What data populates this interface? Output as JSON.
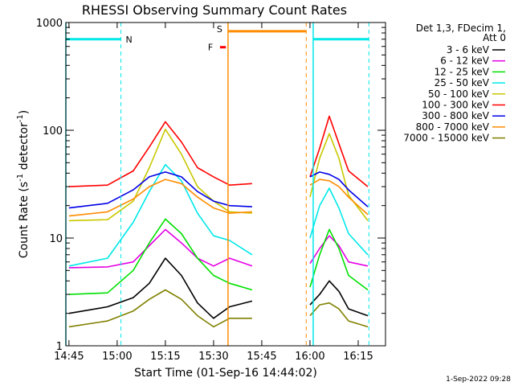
{
  "chart_data": {
    "type": "line",
    "title": "RHESSI Observing Summary Count Rates",
    "xlabel": "Start Time (01-Sep-16 14:44:02)",
    "ylabel_main": "Count Rate (s",
    "ylabel_sup1": "-1",
    "ylabel_mid": " detector",
    "ylabel_sup2": "-1",
    "ylabel_end": ")",
    "timestamp": "1-Sep-2022 09:28",
    "y_scale": "log",
    "ylim": [
      1,
      1000
    ],
    "xlim": [
      "14:44:02",
      "16:23:30"
    ],
    "x_ticks": [
      "14:45",
      "15:00",
      "15:15",
      "15:30",
      "15:45",
      "16:00",
      "16:15"
    ],
    "y_ticks": [
      "1",
      "10",
      "100",
      "1000"
    ],
    "legend": {
      "position": "top-right",
      "header1": "Det 1,3, FDecim 1,",
      "header2": "Att 0"
    },
    "series": [
      {
        "name": "3 - 6 keV",
        "color": "#000000",
        "seg1": [
          [
            "14:45",
            2
          ],
          [
            "14:57",
            2.3
          ],
          [
            "15:05",
            2.8
          ],
          [
            "15:10",
            3.8
          ],
          [
            "15:15",
            6.5
          ],
          [
            "15:20",
            4.5
          ],
          [
            "15:25",
            2.5
          ],
          [
            "15:30",
            1.8
          ],
          [
            "15:35",
            2.3
          ],
          [
            "15:42",
            2.6
          ]
        ],
        "seg2": [
          [
            "16:00",
            2.4
          ],
          [
            "16:03",
            3
          ],
          [
            "16:06",
            4
          ],
          [
            "16:09",
            3.2
          ],
          [
            "16:12",
            2.2
          ],
          [
            "16:18",
            1.9
          ]
        ]
      },
      {
        "name": "6 - 12 keV",
        "color": "#e400e4",
        "seg1": [
          [
            "14:45",
            5.3
          ],
          [
            "14:57",
            5.4
          ],
          [
            "15:05",
            6
          ],
          [
            "15:10",
            8.5
          ],
          [
            "15:15",
            12
          ],
          [
            "15:20",
            9
          ],
          [
            "15:25",
            6.5
          ],
          [
            "15:30",
            5.5
          ],
          [
            "15:35",
            6.5
          ],
          [
            "15:42",
            5.5
          ]
        ],
        "seg2": [
          [
            "16:00",
            5.8
          ],
          [
            "16:03",
            8
          ],
          [
            "16:06",
            10.5
          ],
          [
            "16:09",
            8.5
          ],
          [
            "16:12",
            6
          ],
          [
            "16:18",
            5.5
          ]
        ]
      },
      {
        "name": "12 - 25 keV",
        "color": "#00e000",
        "seg1": [
          [
            "14:45",
            3
          ],
          [
            "14:57",
            3.1
          ],
          [
            "15:05",
            5
          ],
          [
            "15:10",
            9
          ],
          [
            "15:15",
            15
          ],
          [
            "15:20",
            11
          ],
          [
            "15:25",
            6.5
          ],
          [
            "15:30",
            4.5
          ],
          [
            "15:35",
            3.8
          ],
          [
            "15:42",
            3.3
          ]
        ],
        "seg2": [
          [
            "16:00",
            3.5
          ],
          [
            "16:03",
            7
          ],
          [
            "16:06",
            12
          ],
          [
            "16:09",
            8
          ],
          [
            "16:12",
            4.5
          ],
          [
            "16:18",
            3.3
          ]
        ]
      },
      {
        "name": "25 - 50 keV",
        "color": "#00e8e8",
        "seg1": [
          [
            "14:45",
            5.5
          ],
          [
            "14:57",
            6.5
          ],
          [
            "15:05",
            14
          ],
          [
            "15:10",
            27
          ],
          [
            "15:15",
            48
          ],
          [
            "15:20",
            34
          ],
          [
            "15:25",
            17
          ],
          [
            "15:30",
            10.5
          ],
          [
            "15:35",
            9.5
          ],
          [
            "15:42",
            7
          ]
        ],
        "seg2": [
          [
            "16:00",
            10
          ],
          [
            "16:03",
            20
          ],
          [
            "16:06",
            29
          ],
          [
            "16:09",
            19
          ],
          [
            "16:12",
            11
          ],
          [
            "16:18",
            7
          ]
        ]
      },
      {
        "name": "50 - 100 keV",
        "color": "#c8c800",
        "seg1": [
          [
            "14:45",
            14.5
          ],
          [
            "14:57",
            14.8
          ],
          [
            "15:05",
            22
          ],
          [
            "15:10",
            45
          ],
          [
            "15:15",
            102
          ],
          [
            "15:20",
            60
          ],
          [
            "15:25",
            30
          ],
          [
            "15:30",
            22
          ],
          [
            "15:35",
            17.5
          ],
          [
            "15:42",
            17
          ]
        ],
        "seg2": [
          [
            "16:00",
            24
          ],
          [
            "16:03",
            55
          ],
          [
            "16:06",
            93
          ],
          [
            "16:09",
            55
          ],
          [
            "16:12",
            25
          ],
          [
            "16:18",
            14.5
          ]
        ]
      },
      {
        "name": "100 - 300 keV",
        "color": "#ff0000",
        "seg1": [
          [
            "14:45",
            30
          ],
          [
            "14:57",
            31
          ],
          [
            "15:05",
            42
          ],
          [
            "15:10",
            70
          ],
          [
            "15:15",
            120
          ],
          [
            "15:20",
            78
          ],
          [
            "15:25",
            45
          ],
          [
            "15:30",
            37
          ],
          [
            "15:35",
            31
          ],
          [
            "15:42",
            32
          ]
        ],
        "seg2": [
          [
            "16:00",
            37
          ],
          [
            "16:03",
            68
          ],
          [
            "16:06",
            135
          ],
          [
            "16:09",
            75
          ],
          [
            "16:12",
            42
          ],
          [
            "16:18",
            30
          ]
        ]
      },
      {
        "name": "300 - 800 keV",
        "color": "#0000e8",
        "seg1": [
          [
            "14:45",
            19
          ],
          [
            "14:57",
            21
          ],
          [
            "15:05",
            28
          ],
          [
            "15:10",
            37
          ],
          [
            "15:15",
            41
          ],
          [
            "15:20",
            37
          ],
          [
            "15:25",
            27
          ],
          [
            "15:30",
            22
          ],
          [
            "15:35",
            20
          ],
          [
            "15:42",
            19.5
          ]
        ],
        "seg2": [
          [
            "16:00",
            37
          ],
          [
            "16:03",
            41
          ],
          [
            "16:06",
            39
          ],
          [
            "16:09",
            35
          ],
          [
            "16:12",
            28
          ],
          [
            "16:18",
            19.5
          ]
        ]
      },
      {
        "name": "800 - 7000 keV",
        "color": "#ff8c00",
        "seg1": [
          [
            "14:45",
            16
          ],
          [
            "14:57",
            17.5
          ],
          [
            "15:05",
            23
          ],
          [
            "15:10",
            30
          ],
          [
            "15:15",
            35
          ],
          [
            "15:20",
            32
          ],
          [
            "15:25",
            24
          ],
          [
            "15:30",
            19
          ],
          [
            "15:35",
            17
          ],
          [
            "15:42",
            17.5
          ]
        ],
        "seg2": [
          [
            "16:00",
            31
          ],
          [
            "16:03",
            35
          ],
          [
            "16:06",
            34
          ],
          [
            "16:09",
            30
          ],
          [
            "16:12",
            24
          ],
          [
            "16:18",
            16.5
          ]
        ]
      },
      {
        "name": "7000 - 15000 keV",
        "color": "#808000",
        "seg1": [
          [
            "14:45",
            1.5
          ],
          [
            "14:57",
            1.7
          ],
          [
            "15:05",
            2.1
          ],
          [
            "15:10",
            2.7
          ],
          [
            "15:15",
            3.3
          ],
          [
            "15:20",
            2.7
          ],
          [
            "15:25",
            1.9
          ],
          [
            "15:30",
            1.5
          ],
          [
            "15:35",
            1.8
          ],
          [
            "15:42",
            1.8
          ]
        ],
        "seg2": [
          [
            "16:00",
            1.9
          ],
          [
            "16:03",
            2.4
          ],
          [
            "16:06",
            2.5
          ],
          [
            "16:09",
            2.2
          ],
          [
            "16:12",
            1.7
          ],
          [
            "16:18",
            1.5
          ]
        ]
      }
    ],
    "annotations": {
      "night_label": "N",
      "saa_label": "S",
      "flare_label": "F",
      "night_color": "#00e8e8",
      "saa_color": "#ff8c00",
      "flare_color": "#ff0000",
      "night_intervals": [
        [
          "14:44:02",
          "15:01:10"
        ],
        [
          "16:01:00",
          "16:18:20"
        ]
      ],
      "saa_interval": [
        "15:34:30",
        "15:58:50"
      ],
      "flare_interval": [
        "15:32:00",
        "15:33:50"
      ],
      "night_level": 700,
      "saa_level": 830,
      "flare_level": 590
    }
  }
}
